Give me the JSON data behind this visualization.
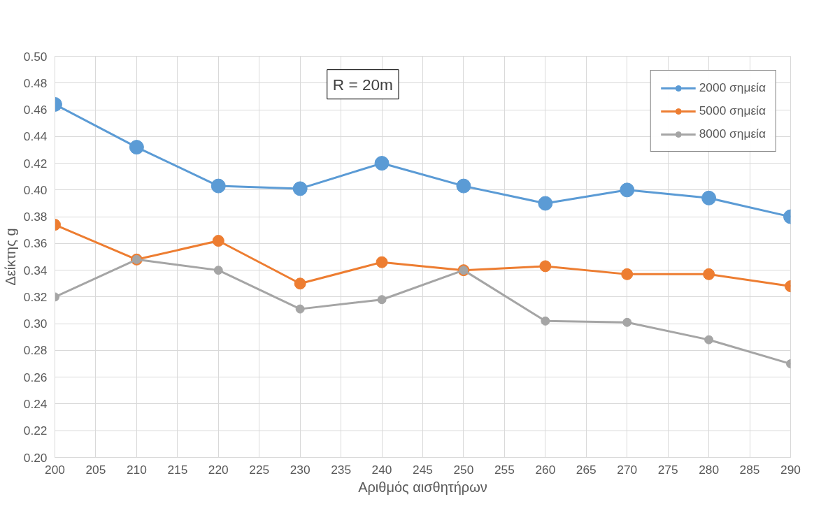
{
  "chart_data": {
    "type": "line",
    "xlabel": "Αριθμός αισθητήρων",
    "ylabel": "Δείκτης g",
    "annotations": [
      "R = 20m"
    ],
    "x": [
      200,
      210,
      220,
      230,
      240,
      250,
      260,
      270,
      280,
      290
    ],
    "series": [
      {
        "name": "2000 σημεία",
        "color": "#5b9bd5",
        "values": [
          0.464,
          0.432,
          0.403,
          0.401,
          0.42,
          0.403,
          0.39,
          0.4,
          0.394,
          0.38
        ]
      },
      {
        "name": "5000 σημεία",
        "color": "#ed7d31",
        "values": [
          0.374,
          0.348,
          0.362,
          0.33,
          0.346,
          0.34,
          0.343,
          0.337,
          0.337,
          0.328
        ]
      },
      {
        "name": "8000 σημεία",
        "color": "#a5a5a5",
        "values": [
          0.32,
          0.348,
          0.34,
          0.311,
          0.318,
          0.34,
          0.302,
          0.301,
          0.288,
          0.27
        ]
      }
    ],
    "xlim": [
      200,
      290
    ],
    "xticks": [
      200,
      205,
      210,
      215,
      220,
      225,
      230,
      235,
      240,
      245,
      250,
      255,
      260,
      265,
      270,
      275,
      280,
      285,
      290
    ],
    "ylim": [
      0.2,
      0.5
    ],
    "yticks": [
      {
        "value": 0.2,
        "label": "0.20"
      },
      {
        "value": 0.22,
        "label": "0.22"
      },
      {
        "value": 0.24,
        "label": "0.24"
      },
      {
        "value": 0.26,
        "label": "0.26"
      },
      {
        "value": 0.28,
        "label": "0.28"
      },
      {
        "value": 0.3,
        "label": "0.30"
      },
      {
        "value": 0.32,
        "label": "0.32"
      },
      {
        "value": 0.34,
        "label": "0.34"
      },
      {
        "value": 0.36,
        "label": "0.36"
      },
      {
        "value": 0.38,
        "label": "0.38"
      },
      {
        "value": 0.4,
        "label": "0.40"
      },
      {
        "value": 0.42,
        "label": "0.42"
      },
      {
        "value": 0.44,
        "label": "0.44"
      },
      {
        "value": 0.46,
        "label": "0.46"
      },
      {
        "value": 0.48,
        "label": "0.48"
      },
      {
        "value": 0.5,
        "label": "0.50"
      }
    ],
    "grid": true,
    "legend": "top right",
    "marker": "circle",
    "line_style": "solid"
  }
}
